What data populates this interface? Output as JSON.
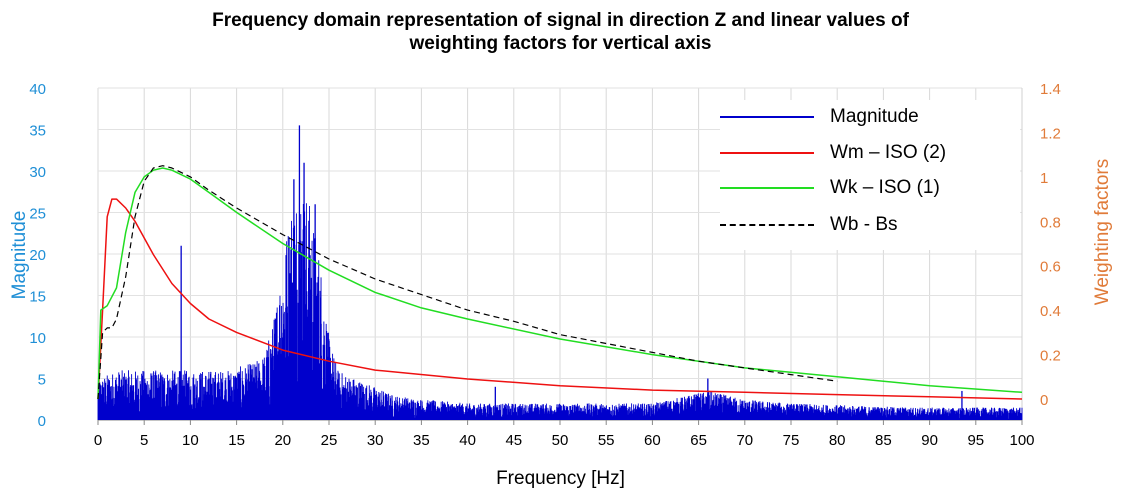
{
  "chart_data": {
    "type": "line",
    "title_line1": "Frequency domain representation of signal in direction Z and linear values of",
    "title_line2": "weighting factors for vertical axis",
    "xlabel": "Frequency [Hz]",
    "ylabel_left": "Magnitude",
    "ylabel_right": "Weighting factors",
    "xlim": [
      0,
      100
    ],
    "ylim_left": [
      0,
      40
    ],
    "ylim_right": [
      -0.1,
      1.4
    ],
    "x_ticks": [
      "0",
      "5",
      "10",
      "15",
      "20",
      "25",
      "30",
      "35",
      "40",
      "45",
      "50",
      "55",
      "60",
      "65",
      "70",
      "75",
      "80",
      "85",
      "90",
      "95",
      "100"
    ],
    "y_left_ticks": [
      "0",
      "5",
      "10",
      "15",
      "20",
      "25",
      "30",
      "35",
      "40"
    ],
    "y_right_ticks": [
      "0",
      "0.2",
      "0.4",
      "0.6",
      "0.8",
      "1",
      "1.2",
      "1.4"
    ],
    "colors": {
      "magnitude": "#0000cc",
      "wm": "#ee1111",
      "wk": "#22dd22",
      "wb": "#000000",
      "left_axis": "#1f8fd6",
      "right_axis": "#e07b39"
    },
    "legend_placement": "top-right",
    "series": [
      {
        "name": "Magnitude",
        "axis": "left",
        "style": "spectrum",
        "envelope": {
          "x": [
            0,
            2,
            5,
            8,
            10,
            14,
            17,
            18,
            19,
            20,
            21,
            22,
            23,
            24,
            25,
            26,
            28,
            30,
            32,
            35,
            40,
            45,
            50,
            55,
            60,
            62,
            64,
            66,
            68,
            70,
            75,
            80,
            85,
            90,
            95,
            100
          ],
          "y": [
            5,
            6,
            6,
            6,
            6,
            6,
            7,
            8,
            12,
            20,
            27,
            29,
            26,
            20,
            10,
            6,
            5,
            4,
            3,
            2.5,
            2,
            2,
            2,
            2,
            2,
            2.5,
            3,
            3.5,
            3,
            2.5,
            2,
            1.8,
            1.6,
            1.5,
            1.5,
            1.5
          ]
        },
        "peaks": [
          {
            "x": 9,
            "y": 21
          },
          {
            "x": 21.2,
            "y": 29
          },
          {
            "x": 21.8,
            "y": 35.5
          },
          {
            "x": 22.3,
            "y": 31
          },
          {
            "x": 23.5,
            "y": 26
          },
          {
            "x": 43,
            "y": 4
          },
          {
            "x": 66,
            "y": 5
          },
          {
            "x": 93.5,
            "y": 3.5
          }
        ]
      },
      {
        "name": "Wm – ISO (2)",
        "axis": "right",
        "x": [
          0,
          0.5,
          1,
          1.5,
          2,
          3,
          4,
          6,
          8,
          10,
          12,
          15,
          20,
          25,
          30,
          40,
          50,
          60,
          70,
          80,
          90,
          100
        ],
        "y": [
          0,
          0.4,
          0.82,
          0.9,
          0.9,
          0.86,
          0.8,
          0.65,
          0.52,
          0.43,
          0.36,
          0.3,
          0.22,
          0.17,
          0.13,
          0.09,
          0.06,
          0.04,
          0.03,
          0.02,
          0.01,
          0.0
        ]
      },
      {
        "name": "Wk – ISO (1)",
        "axis": "right",
        "x": [
          0,
          0.3,
          1,
          2,
          3,
          4,
          5,
          6,
          7,
          8,
          10,
          12,
          15,
          20,
          25,
          30,
          35,
          40,
          50,
          60,
          70,
          80,
          90,
          100
        ],
        "y": [
          0,
          0.4,
          0.42,
          0.5,
          0.75,
          0.93,
          1.0,
          1.03,
          1.04,
          1.03,
          0.99,
          0.93,
          0.84,
          0.7,
          0.58,
          0.48,
          0.41,
          0.36,
          0.27,
          0.2,
          0.14,
          0.1,
          0.06,
          0.03
        ]
      },
      {
        "name": "Wb - Bs",
        "axis": "right",
        "x": [
          0,
          0.5,
          1,
          1.5,
          2,
          3,
          4,
          5,
          6,
          7,
          8,
          10,
          12,
          15,
          20,
          25,
          30,
          35,
          40,
          45,
          50,
          55,
          60,
          65,
          70,
          75,
          80
        ],
        "y": [
          0,
          0.3,
          0.32,
          0.32,
          0.36,
          0.55,
          0.82,
          0.98,
          1.04,
          1.05,
          1.04,
          1.0,
          0.94,
          0.86,
          0.74,
          0.63,
          0.54,
          0.47,
          0.4,
          0.35,
          0.29,
          0.25,
          0.21,
          0.17,
          0.14,
          0.11,
          0.08
        ]
      }
    ]
  }
}
